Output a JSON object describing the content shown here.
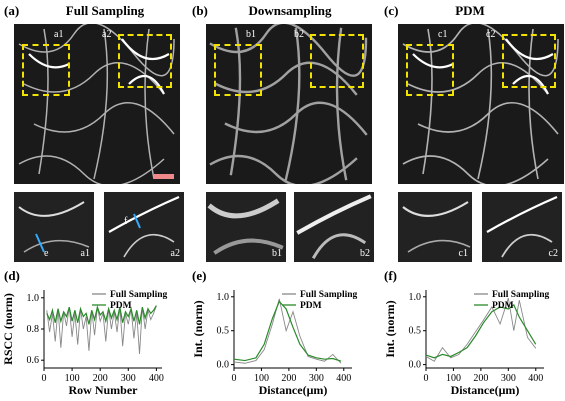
{
  "panels": {
    "a": {
      "tag": "(a)",
      "title": "Full Sampling",
      "box1": "a1",
      "box2": "a2"
    },
    "b": {
      "tag": "(b)",
      "title": "Downsampling",
      "box1": "b1",
      "box2": "b2"
    },
    "c": {
      "tag": "(c)",
      "title": "PDM",
      "box1": "c1",
      "box2": "c2"
    },
    "d": {
      "tag": "(d)"
    },
    "e": {
      "tag": "(e)"
    },
    "f": {
      "tag": "(f)"
    }
  },
  "annotations": {
    "e_marker": "e",
    "f_marker": "f"
  },
  "colors": {
    "full_sampling": "#888888",
    "pdm": "#2a8a2a",
    "box": "#f2e200",
    "scale": "#f08a8a",
    "line_marker": "#33aaff"
  },
  "chart_data": [
    {
      "type": "line",
      "panel": "d",
      "xlabel": "Row Number",
      "ylabel": "RSCC (norm)",
      "xlim": [
        0,
        420
      ],
      "ylim": [
        0.55,
        1.05
      ],
      "xticks": [
        "0",
        "100",
        "200",
        "300",
        "400"
      ],
      "yticks": [
        "0.6",
        "0.8",
        "1.0"
      ],
      "legend": "top-right",
      "series": [
        {
          "name": "Full Sampling",
          "x": [
            10,
            20,
            30,
            40,
            50,
            60,
            70,
            80,
            90,
            100,
            110,
            120,
            130,
            140,
            150,
            160,
            170,
            180,
            190,
            200,
            210,
            220,
            230,
            240,
            250,
            260,
            270,
            280,
            290,
            300,
            310,
            320,
            330,
            340,
            350,
            360,
            370,
            380,
            390,
            400
          ],
          "values": [
            0.92,
            0.78,
            0.9,
            0.72,
            0.93,
            0.68,
            0.91,
            0.82,
            0.94,
            0.75,
            0.9,
            0.7,
            0.93,
            0.8,
            0.88,
            0.66,
            0.92,
            0.76,
            0.94,
            0.85,
            0.9,
            0.72,
            0.93,
            0.8,
            0.91,
            0.78,
            0.94,
            0.69,
            0.9,
            0.83,
            0.93,
            0.74,
            0.9,
            0.64,
            0.94,
            0.8,
            0.92,
            0.86,
            0.9,
            0.95
          ]
        },
        {
          "name": "PDM",
          "x": [
            10,
            20,
            30,
            40,
            50,
            60,
            70,
            80,
            90,
            100,
            110,
            120,
            130,
            140,
            150,
            160,
            170,
            180,
            190,
            200,
            210,
            220,
            230,
            240,
            250,
            260,
            270,
            280,
            290,
            300,
            310,
            320,
            330,
            340,
            350,
            360,
            370,
            380,
            390,
            400
          ],
          "values": [
            0.9,
            0.86,
            0.92,
            0.84,
            0.93,
            0.85,
            0.91,
            0.88,
            0.94,
            0.85,
            0.92,
            0.84,
            0.93,
            0.88,
            0.9,
            0.83,
            0.92,
            0.86,
            0.94,
            0.89,
            0.91,
            0.85,
            0.93,
            0.87,
            0.92,
            0.86,
            0.94,
            0.84,
            0.91,
            0.88,
            0.93,
            0.85,
            0.92,
            0.83,
            0.94,
            0.87,
            0.93,
            0.9,
            0.92,
            0.95
          ]
        }
      ]
    },
    {
      "type": "line",
      "panel": "e",
      "xlabel": "Distance(μm)",
      "ylabel": "Int. (norm)",
      "xlim": [
        0,
        430
      ],
      "ylim": [
        -0.05,
        1.1
      ],
      "xticks": [
        "0",
        "100",
        "200",
        "300",
        "400"
      ],
      "yticks": [
        "0.0",
        "0.5",
        "1.0"
      ],
      "legend": "top-right",
      "series": [
        {
          "name": "Full Sampling",
          "x": [
            0,
            40,
            80,
            110,
            140,
            165,
            190,
            215,
            240,
            270,
            300,
            330,
            360,
            390
          ],
          "values": [
            0.04,
            0.02,
            0.06,
            0.22,
            0.6,
            0.97,
            0.5,
            0.78,
            0.42,
            0.12,
            0.08,
            0.05,
            0.15,
            0.02
          ]
        },
        {
          "name": "PDM",
          "x": [
            0,
            40,
            80,
            110,
            140,
            165,
            190,
            215,
            240,
            270,
            300,
            330,
            360,
            390
          ],
          "values": [
            0.08,
            0.06,
            0.1,
            0.3,
            0.68,
            0.93,
            0.82,
            0.55,
            0.3,
            0.14,
            0.1,
            0.08,
            0.09,
            0.05
          ]
        }
      ]
    },
    {
      "type": "line",
      "panel": "f",
      "xlabel": "Distance(μm)",
      "ylabel": "Int. (norm)",
      "xlim": [
        0,
        430
      ],
      "ylim": [
        -0.05,
        1.1
      ],
      "xticks": [
        "0",
        "100",
        "200",
        "300",
        "400"
      ],
      "yticks": [
        "0.0",
        "0.5",
        "1.0"
      ],
      "legend": "top-right",
      "series": [
        {
          "name": "Full Sampling",
          "x": [
            0,
            30,
            60,
            90,
            120,
            150,
            180,
            210,
            240,
            270,
            300,
            320,
            340,
            370,
            400
          ],
          "values": [
            0.12,
            0.05,
            0.25,
            0.1,
            0.15,
            0.3,
            0.48,
            0.66,
            0.85,
            0.6,
            0.98,
            0.5,
            0.95,
            0.4,
            0.24
          ]
        },
        {
          "name": "PDM",
          "x": [
            0,
            30,
            60,
            90,
            120,
            150,
            180,
            210,
            240,
            270,
            300,
            320,
            340,
            370,
            400
          ],
          "values": [
            0.14,
            0.1,
            0.15,
            0.12,
            0.18,
            0.25,
            0.42,
            0.62,
            0.78,
            0.85,
            0.82,
            0.88,
            0.7,
            0.5,
            0.3
          ]
        }
      ]
    }
  ]
}
